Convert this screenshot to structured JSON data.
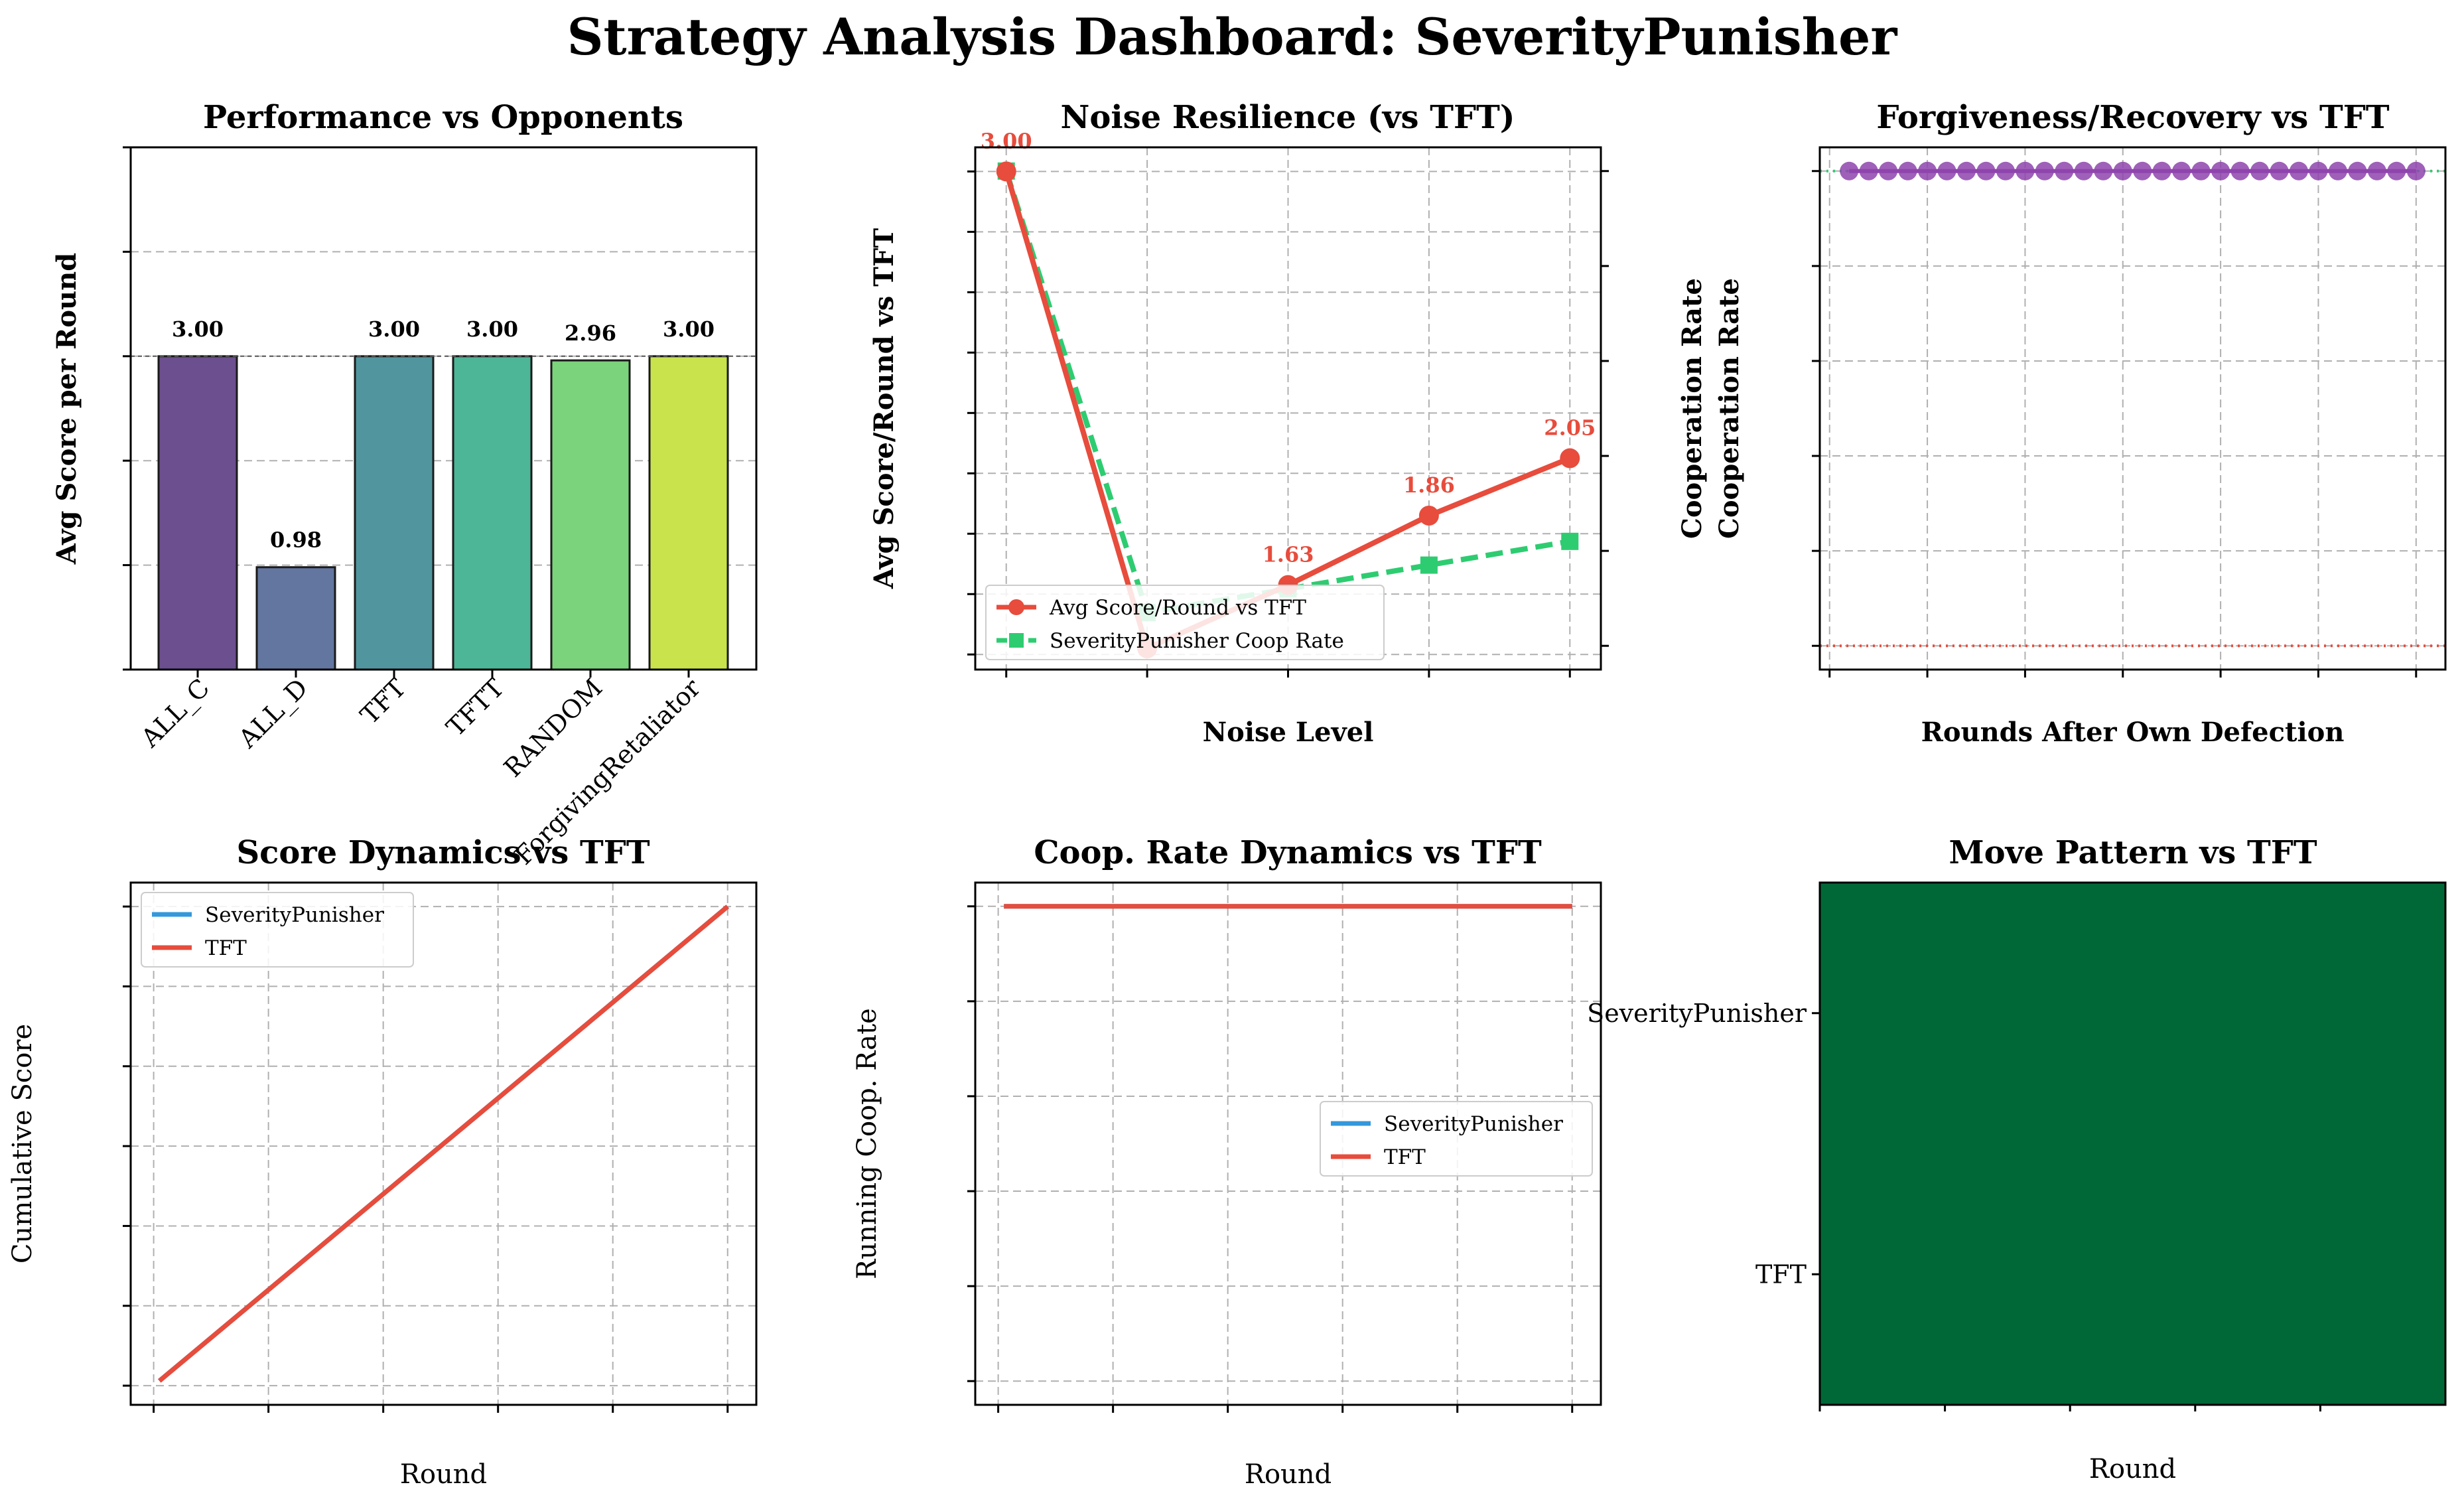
{
  "figure": {
    "title": "Strategy Analysis Dashboard: SeverityPunisher",
    "colors": {
      "red": "#e74c3c",
      "green": "#2ecc71",
      "blue": "#3498db",
      "purple": "#8e44ad",
      "heat": "#006837"
    }
  },
  "chart_data": [
    {
      "type": "bar",
      "title": "Performance vs Opponents",
      "xlabel": "",
      "ylabel": "Avg Score per Round",
      "categories": [
        "ALL_C",
        "ALL_D",
        "TFT",
        "TFTT",
        "RANDOM",
        "ForgivingRetaliator"
      ],
      "values": [
        3.0,
        0.98,
        3.0,
        3.0,
        2.96,
        3.0
      ],
      "value_labels": [
        "3.00",
        "0.98",
        "3.00",
        "3.00",
        "2.96",
        "3.00"
      ],
      "bar_colors": [
        "#6c4f8f",
        "#62769f",
        "#51969f",
        "#4cb696",
        "#7bd37b",
        "#c8e34b"
      ],
      "ylim": [
        0,
        5
      ],
      "yticks": [
        0,
        1,
        2,
        3,
        4,
        5
      ],
      "reference_line": 3.0,
      "grid": "y"
    },
    {
      "type": "line",
      "title": "Noise Resilience (vs TFT)",
      "xlabel": "Noise Level",
      "ylabel": "Avg Score/Round vs TFT",
      "ylabel_right": "Cooperation Rate",
      "x": [
        0.0,
        0.05,
        0.1,
        0.15,
        0.2
      ],
      "xticks": [
        "0.00",
        "0.05",
        "0.10",
        "0.15",
        "0.20"
      ],
      "xlim": [
        -0.011,
        0.211
      ],
      "ylim": [
        1.35,
        3.08
      ],
      "yticks": [
        "1.4",
        "1.6",
        "1.8",
        "2.0",
        "2.2",
        "2.4",
        "2.6",
        "2.8",
        "3.0"
      ],
      "ylim_right": [
        -0.05,
        1.05
      ],
      "yticks_right": [
        "0.0",
        "0.2",
        "0.4",
        "0.6",
        "0.8",
        "1.0"
      ],
      "series": [
        {
          "name": "Avg Score/Round vs TFT",
          "axis": "left",
          "values": [
            3.0,
            1.42,
            1.63,
            1.86,
            2.05
          ],
          "labels": [
            "3.00",
            "",
            "1.63",
            "1.86",
            "2.05"
          ]
        },
        {
          "name": "SeverityPunisher Coop Rate",
          "axis": "right",
          "values": [
            1.0,
            0.07,
            0.12,
            0.17,
            0.22
          ]
        }
      ],
      "legend": "lower-left",
      "grid": true
    },
    {
      "type": "scatter",
      "title": "Forgiveness/Recovery vs TFT",
      "xlabel": "Rounds After Own Defection",
      "ylabel": "Cooperation Rate",
      "x": [
        1,
        2,
        3,
        4,
        5,
        6,
        7,
        8,
        9,
        10,
        11,
        12,
        13,
        14,
        15,
        16,
        17,
        18,
        19,
        20,
        21,
        22,
        23,
        24,
        25,
        26,
        27,
        28,
        29,
        30
      ],
      "values": [
        1,
        1,
        1,
        1,
        1,
        1,
        1,
        1,
        1,
        1,
        1,
        1,
        1,
        1,
        1,
        1,
        1,
        1,
        1,
        1,
        1,
        1,
        1,
        1,
        1,
        1,
        1,
        1,
        1,
        1
      ],
      "xlim": [
        -0.5,
        31.5
      ],
      "xticks": [
        "0",
        "5",
        "10",
        "15",
        "20",
        "25",
        "30"
      ],
      "ylim": [
        -0.05,
        1.05
      ],
      "yticks": [
        "0.0",
        "0.2",
        "0.4",
        "0.6",
        "0.8",
        "1.0"
      ],
      "reference_lines": [
        1.0,
        0.0
      ],
      "grid": true
    },
    {
      "type": "line",
      "title": "Score Dynamics vs TFT",
      "xlabel": "Round",
      "ylabel": "Cumulative Score",
      "x_range": [
        1,
        100
      ],
      "xlim": [
        -4,
        105
      ],
      "xticks": [
        "0",
        "20",
        "40",
        "60",
        "80",
        "100"
      ],
      "ylim": [
        -12,
        315
      ],
      "yticks": [
        "0",
        "50",
        "100",
        "150",
        "200",
        "250",
        "300"
      ],
      "series": [
        {
          "name": "SeverityPunisher",
          "start": 3,
          "end": 300
        },
        {
          "name": "TFT",
          "start": 3,
          "end": 300
        }
      ],
      "legend": "upper-left",
      "grid": true
    },
    {
      "type": "line",
      "title": "Coop. Rate Dynamics vs TFT",
      "xlabel": "Round",
      "ylabel": "Running Coop. Rate",
      "x_range": [
        1,
        100
      ],
      "xlim": [
        -4,
        105
      ],
      "xticks": [
        "0",
        "20",
        "40",
        "60",
        "80",
        "100"
      ],
      "ylim": [
        -0.05,
        1.05
      ],
      "yticks": [
        "0.0",
        "0.2",
        "0.4",
        "0.6",
        "0.8",
        "1.0"
      ],
      "series": [
        {
          "name": "SeverityPunisher",
          "start": 1.0,
          "end": 1.0
        },
        {
          "name": "TFT",
          "start": 1.0,
          "end": 1.0
        }
      ],
      "legend": "center-right",
      "grid": true
    },
    {
      "type": "heatmap",
      "title": "Move Pattern vs TFT",
      "xlabel": "Round",
      "rows": [
        "SeverityPunisher",
        "TFT"
      ],
      "columns": 100,
      "value": "all cooperate",
      "xticks": [
        "0",
        "20",
        "40",
        "60",
        "80"
      ]
    }
  ]
}
